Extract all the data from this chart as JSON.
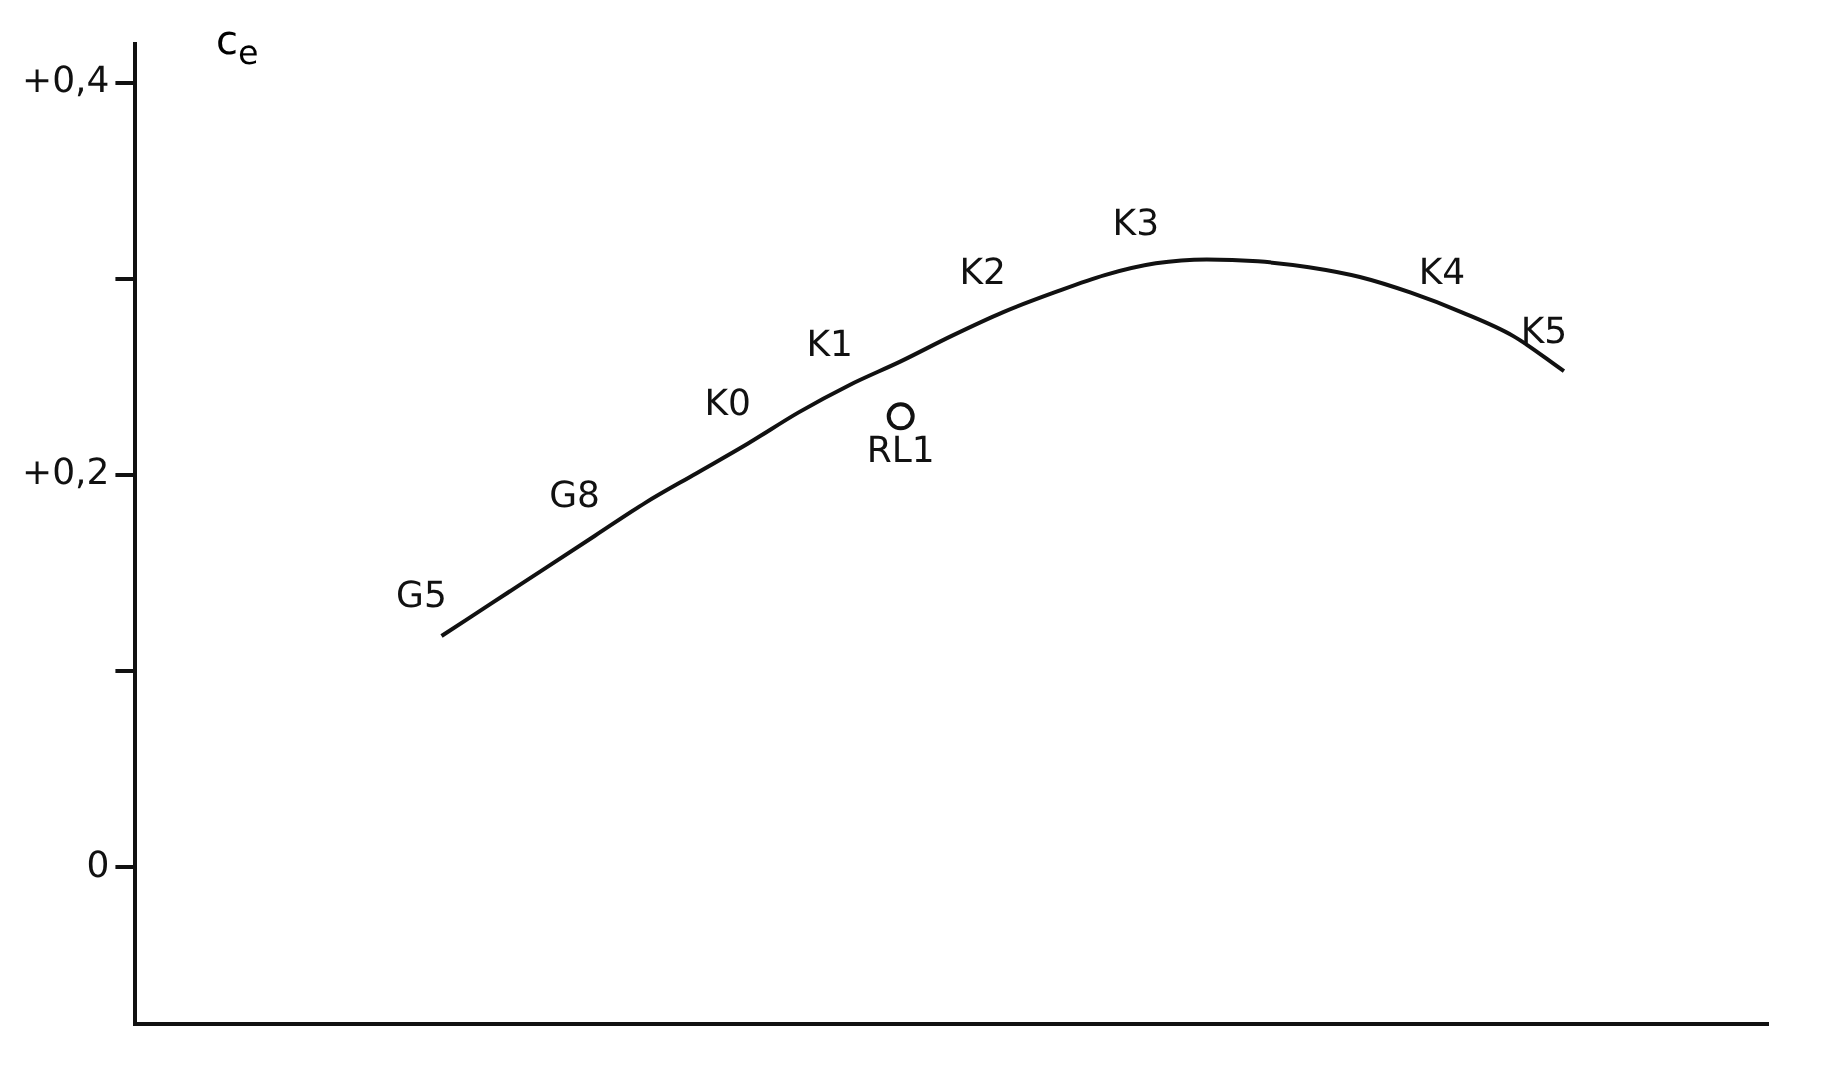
{
  "chart_data": {
    "type": "line",
    "ylabel": "c$_{e}$",
    "categories": [
      null,
      null,
      null,
      null,
      null,
      null,
      null,
      null,
      null,
      null,
      null,
      null,
      null,
      null,
      null,
      null,
      null,
      null,
      null,
      null,
      null,
      null,
      null,
      null,
      null,
      null,
      null,
      null,
      null,
      null,
      null,
      null,
      null
    ],
    "series": [
      {
        "color": "#111111",
        "values": [
          null,
          null,
          null,
          null,
          null,
          null,
          0.118,
          0.135,
          0.152,
          0.169,
          0.186,
          0.201,
          0.216,
          0.232,
          0.246,
          0.258,
          0.271,
          0.283,
          0.293,
          0.302,
          0.308,
          0.31,
          0.309,
          0.306,
          0.301,
          0.293,
          0.283,
          0.271,
          0.253,
          null,
          null,
          null,
          null
        ],
        "value_labels": [
          null,
          null,
          null,
          null,
          null,
          null,
          "G5",
          null,
          null,
          "G8",
          null,
          null,
          "K0",
          null,
          "K1",
          null,
          null,
          "K2",
          null,
          null,
          "K3",
          null,
          null,
          null,
          null,
          null,
          "K4",
          null,
          "K5",
          null,
          null,
          null,
          null
        ]
      },
      {
        "type": "scatter",
        "color": "#111111",
        "marker": "circle",
        "values": [
          null,
          null,
          null,
          null,
          null,
          null,
          null,
          null,
          null,
          null,
          null,
          null,
          null,
          null,
          null,
          0.23,
          null,
          null,
          null,
          null,
          null,
          null,
          null,
          null,
          null,
          null,
          null,
          null,
          null,
          null,
          null,
          null,
          null
        ],
        "value_labels": [
          null,
          null,
          null,
          null,
          null,
          null,
          null,
          null,
          null,
          null,
          null,
          null,
          null,
          null,
          null,
          "RL1",
          null,
          null,
          null,
          null,
          null,
          null,
          null,
          null,
          null,
          null,
          null,
          null,
          null,
          null,
          null,
          null,
          null
        ]
      }
    ],
    "ylim": [
      -0.08,
      0.42
    ],
    "yticks": [
      {
        "value": 0,
        "label": "0"
      },
      {
        "value": 0.1,
        "label": null
      },
      {
        "value": 0.2,
        "label": "+0,2"
      },
      {
        "value": 0.3,
        "label": null
      },
      {
        "value": 0.4,
        "label": "+0,4"
      }
    ],
    "grid": false,
    "legend": false,
    "tick_labels": "y"
  }
}
